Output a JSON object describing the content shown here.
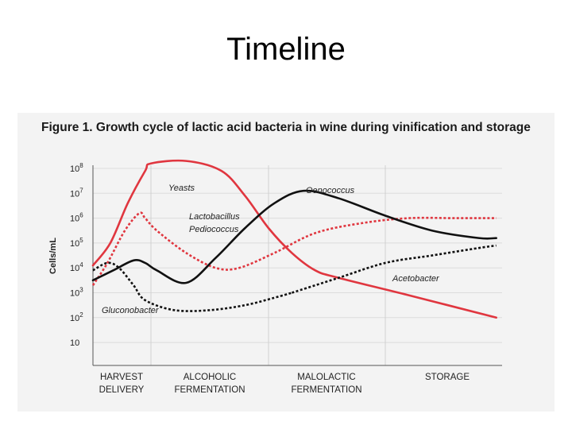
{
  "slide": {
    "title": "Timeline"
  },
  "chart_data": {
    "type": "line",
    "title": "Figure 1. Growth cycle of lactic acid bacteria in wine during vinification and storage",
    "ylabel": "Cells/mL",
    "y_scale": "log",
    "ylim": [
      1,
      100000000
    ],
    "y_ticks": [
      {
        "base": "10",
        "exp": "8"
      },
      {
        "base": "10",
        "exp": "7"
      },
      {
        "base": "10",
        "exp": "6"
      },
      {
        "base": "10",
        "exp": "5"
      },
      {
        "base": "10",
        "exp": "4"
      },
      {
        "base": "10",
        "exp": "3"
      },
      {
        "base": "10",
        "exp": "2"
      },
      {
        "base": "10",
        "exp": ""
      }
    ],
    "phases": [
      {
        "line1": "HARVEST",
        "line2": "DELIVERY"
      },
      {
        "line1": "ALCOHOLIC",
        "line2": "FERMENTATION"
      },
      {
        "line1": "MALOLACTIC",
        "line2": "FERMENTATION"
      },
      {
        "line1": "STORAGE",
        "line2": ""
      }
    ],
    "grid": true,
    "series": [
      {
        "name": "Yeasts",
        "color": "#e0363f",
        "style": "solid",
        "x": [
          0.0,
          0.3,
          0.6,
          0.9,
          1.0,
          1.3,
          1.6,
          1.8,
          2.0,
          2.2,
          2.4,
          2.6,
          3.2,
          3.95
        ],
        "y": [
          4.1,
          5.0,
          6.6,
          7.9,
          8.2,
          8.3,
          7.9,
          6.9,
          5.6,
          4.6,
          3.9,
          3.6,
          2.9,
          2.0
        ]
      },
      {
        "name": "Lactobacillus Pediococcus",
        "color": "#e0363f",
        "style": "dashed",
        "x": [
          0.0,
          0.25,
          0.55,
          0.8,
          0.9,
          1.05,
          1.3,
          1.55,
          1.75,
          2.05,
          2.4,
          2.8,
          3.2,
          3.6,
          3.95
        ],
        "y": [
          3.3,
          4.2,
          5.5,
          6.2,
          6.0,
          5.5,
          4.6,
          4.0,
          4.0,
          4.6,
          5.4,
          5.8,
          6.0,
          6.0,
          6.0
        ]
      },
      {
        "name": "Oenococcus",
        "color": "#111111",
        "style": "solid",
        "x": [
          0.0,
          0.35,
          0.7,
          0.9,
          1.05,
          1.3,
          1.55,
          1.8,
          2.05,
          2.3,
          2.6,
          3.0,
          3.4,
          3.8,
          3.95
        ],
        "y": [
          3.5,
          3.9,
          4.3,
          4.2,
          3.9,
          3.4,
          4.4,
          5.6,
          6.6,
          7.1,
          6.8,
          6.1,
          5.5,
          5.2,
          5.2
        ]
      },
      {
        "name": "Acetobacter",
        "color": "#111111",
        "style": "dashed",
        "x": [
          2.2,
          2.6,
          3.0,
          3.4,
          3.8,
          3.95
        ],
        "y": [
          3.0,
          3.6,
          4.2,
          4.5,
          4.8,
          4.9
        ]
      },
      {
        "name": "Gluconobacter",
        "color": "#111111",
        "style": "dashed",
        "x": [
          0.0,
          0.25,
          0.45,
          0.7,
          0.9,
          1.2,
          1.5,
          1.8,
          2.05,
          2.2
        ],
        "y": [
          3.9,
          4.2,
          4.0,
          3.3,
          2.7,
          2.3,
          2.3,
          2.5,
          2.8,
          3.0
        ]
      }
    ]
  }
}
